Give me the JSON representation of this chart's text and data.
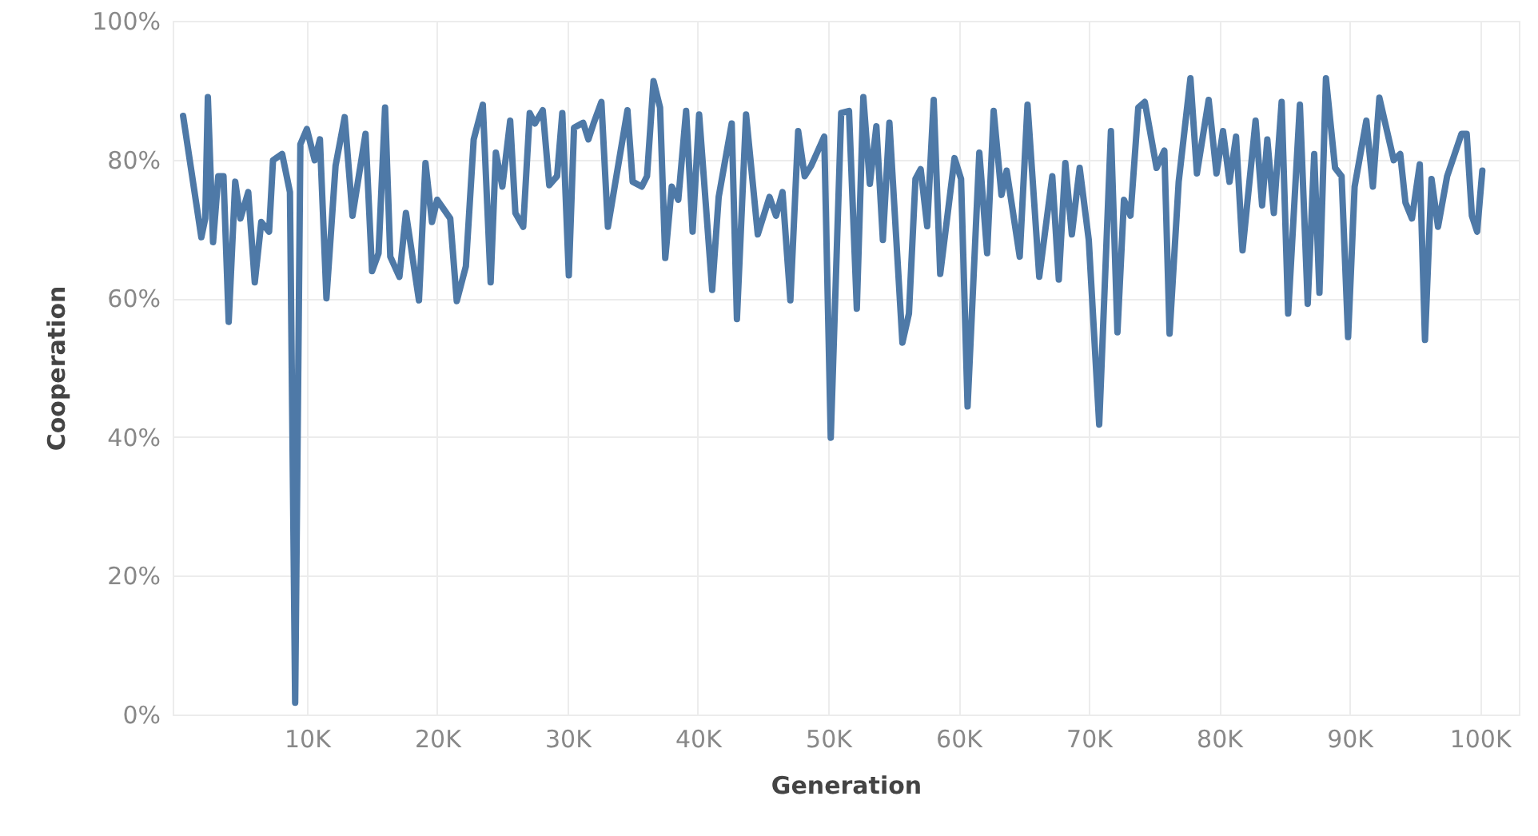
{
  "chart_data": {
    "type": "line",
    "xlabel": "Generation",
    "ylabel": "Cooperation",
    "x": [
      500,
      1900,
      2200,
      2400,
      2800,
      3200,
      3600,
      4000,
      4500,
      4900,
      5500,
      6000,
      6500,
      7100,
      7400,
      8100,
      8700,
      9100,
      9500,
      10000,
      10600,
      11000,
      11500,
      12200,
      12900,
      13500,
      14500,
      15000,
      15500,
      16000,
      16400,
      17100,
      17600,
      18600,
      19100,
      19600,
      20000,
      21000,
      21500,
      22200,
      22800,
      23500,
      24100,
      24500,
      25000,
      25600,
      26000,
      26600,
      27100,
      27500,
      28100,
      28600,
      29200,
      29600,
      30100,
      30500,
      31200,
      31600,
      32000,
      32600,
      33100,
      34600,
      35000,
      35700,
      36100,
      36600,
      37100,
      37500,
      38000,
      38500,
      39100,
      39600,
      40100,
      41100,
      41600,
      42600,
      43000,
      43700,
      44600,
      45500,
      46000,
      46500,
      47100,
      47700,
      48200,
      48700,
      49700,
      50200,
      51000,
      51600,
      52200,
      52700,
      53200,
      53700,
      54200,
      54700,
      55700,
      56200,
      56700,
      57100,
      57600,
      58100,
      58600,
      59700,
      60200,
      60700,
      61600,
      62200,
      62700,
      63300,
      63700,
      64700,
      65300,
      66200,
      67200,
      67700,
      68200,
      68700,
      69300,
      70000,
      70800,
      71700,
      72200,
      72700,
      73200,
      73800,
      74300,
      75200,
      75800,
      76200,
      76900,
      77800,
      78300,
      79200,
      79800,
      80300,
      80800,
      81300,
      81800,
      82800,
      83300,
      83700,
      84200,
      84800,
      85300,
      86200,
      86800,
      87300,
      87700,
      88200,
      88900,
      89400,
      89900,
      90400,
      91300,
      91800,
      92300,
      93400,
      93900,
      94300,
      94800,
      95400,
      95800,
      96300,
      96800,
      97500,
      98600,
      99000,
      99400,
      99800,
      100200
    ],
    "series": [
      {
        "color": "#4e79a7",
        "values": [
          86.3,
          68.8,
          71.5,
          89.0,
          68.1,
          77.6,
          77.6,
          56.6,
          76.8,
          71.5,
          75.3,
          62.3,
          71.0,
          69.6,
          79.9,
          80.8,
          75.3,
          1.7,
          82.2,
          84.4,
          79.9,
          82.9,
          60.0,
          79.1,
          86.1,
          71.9,
          83.7,
          63.9,
          66.5,
          87.5,
          66.0,
          63.1,
          72.3,
          59.7,
          79.5,
          71.0,
          74.2,
          71.5,
          59.6,
          64.6,
          82.9,
          87.9,
          62.3,
          81.0,
          76.1,
          85.6,
          72.3,
          70.3,
          86.7,
          85.2,
          87.1,
          76.3,
          77.6,
          86.7,
          63.3,
          84.6,
          85.3,
          82.9,
          85.2,
          88.3,
          70.3,
          87.1,
          76.8,
          76.1,
          77.6,
          91.3,
          87.5,
          65.8,
          76.1,
          74.2,
          87.0,
          69.6,
          86.5,
          61.2,
          74.6,
          85.2,
          57.0,
          86.5,
          69.2,
          74.6,
          71.9,
          75.3,
          59.7,
          84.1,
          77.6,
          79.1,
          83.3,
          39.9,
          86.7,
          87.0,
          58.5,
          89.0,
          76.5,
          84.8,
          68.4,
          85.3,
          53.6,
          57.8,
          77.2,
          78.6,
          70.4,
          88.6,
          63.5,
          80.2,
          77.2,
          44.4,
          81.0,
          66.5,
          87.0,
          74.9,
          78.4,
          66.0,
          87.9,
          63.1,
          77.6,
          62.7,
          79.5,
          69.2,
          78.8,
          68.4,
          41.8,
          84.1,
          55.1,
          74.2,
          71.9,
          87.5,
          88.3,
          78.8,
          81.3,
          54.9,
          76.8,
          91.7,
          78.0,
          88.6,
          78.0,
          84.1,
          76.8,
          83.3,
          66.9,
          85.6,
          73.4,
          82.9,
          72.3,
          88.3,
          57.8,
          87.9,
          59.2,
          80.8,
          60.8,
          91.7,
          78.8,
          77.6,
          54.4,
          76.1,
          85.6,
          76.1,
          88.9,
          79.9,
          80.8,
          73.8,
          71.5,
          79.3,
          54.0,
          77.2,
          70.3,
          77.6,
          83.7,
          83.7,
          71.9,
          69.6,
          78.4
        ]
      }
    ],
    "xlim": [
      -300,
      103000
    ],
    "xticks": [
      {
        "value": 10000,
        "label": "10K"
      },
      {
        "value": 20000,
        "label": "20K"
      },
      {
        "value": 30000,
        "label": "30K"
      },
      {
        "value": 40000,
        "label": "40K"
      },
      {
        "value": 50000,
        "label": "50K"
      },
      {
        "value": 60000,
        "label": "60K"
      },
      {
        "value": 70000,
        "label": "70K"
      },
      {
        "value": 80000,
        "label": "80K"
      },
      {
        "value": 90000,
        "label": "90K"
      },
      {
        "value": 100000,
        "label": "100K"
      }
    ],
    "ylim": [
      0,
      100
    ],
    "yticks": [
      {
        "value": 0,
        "label": "0%"
      },
      {
        "value": 20,
        "label": "20%"
      },
      {
        "value": 40,
        "label": "40%"
      },
      {
        "value": 60,
        "label": "60%"
      },
      {
        "value": 80,
        "label": "80%"
      },
      {
        "value": 100,
        "label": "100%"
      }
    ],
    "grid": true,
    "marker": "none",
    "line_style": "solid"
  }
}
